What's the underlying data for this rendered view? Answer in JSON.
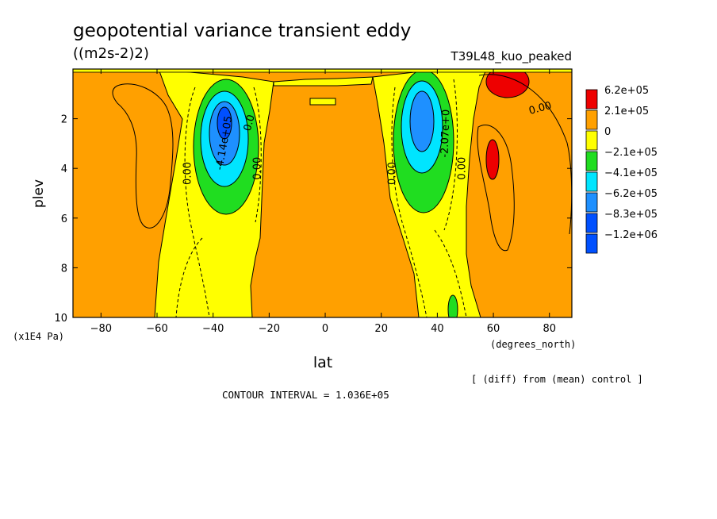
{
  "colors": {
    "red": "#ee0000",
    "orange": "#ffa000",
    "yellow": "#ffff00",
    "green": "#20dd20",
    "cyan": "#00e5ff",
    "lightblue": "#1e90ff",
    "blue": "#0050ff"
  },
  "chart_data": {
    "type": "heatmap",
    "title": "geopotential variance transient eddy",
    "units": "((m2s-2)2)",
    "run": "T39L48_kuo_peaked",
    "xlabel": "lat",
    "xunits": "(degrees_north)",
    "ylabel": "plev",
    "yunits": "(x1E4 Pa)",
    "xlim": [
      -90,
      88
    ],
    "ylim": [
      10,
      0
    ],
    "xticks": [
      -80,
      -60,
      -40,
      -20,
      0,
      20,
      40,
      60,
      80
    ],
    "yticks": [
      2,
      4,
      6,
      8,
      10
    ],
    "note": "[ (diff) from (mean) control ]",
    "contour_interval": "CONTOUR INTERVAL = 1.036E+05",
    "legend": {
      "placement": "right",
      "entries": [
        {
          "label": "6.2e+05",
          "color": "#ee0000"
        },
        {
          "label": "2.1e+05",
          "color": "#ffa000"
        },
        {
          "label": "0",
          "color": "#ffff00"
        },
        {
          "label": "−2.1e+05",
          "color": "#20dd20"
        },
        {
          "label": "−4.1e+05",
          "color": "#00e5ff"
        },
        {
          "label": "−6.2e+05",
          "color": "#1e90ff"
        },
        {
          "label": "−8.3e+05",
          "color": "#0050ff"
        },
        {
          "label": "−1.2e+06",
          "color": "#0050ff"
        }
      ]
    },
    "contour_labels": [
      {
        "text": "0.00",
        "lat": -48,
        "plev": 4.2,
        "rotate": -90
      },
      {
        "text": "0.00",
        "lat": -23,
        "plev": 4.0,
        "rotate": -90
      },
      {
        "text": "-4.14e+05",
        "lat": -35,
        "plev": 3.0,
        "rotate": -80
      },
      {
        "text": "0.0",
        "lat": -26,
        "plev": 2.2,
        "rotate": -75
      },
      {
        "text": "0.00",
        "lat": 25,
        "plev": 4.2,
        "rotate": -90
      },
      {
        "text": "-2.07e+0",
        "lat": 44,
        "plev": 2.6,
        "rotate": -88
      },
      {
        "text": "0.00",
        "lat": 50,
        "plev": 4.0,
        "rotate": -90
      },
      {
        "text": "0.00",
        "lat": 77,
        "plev": 1.7,
        "rotate": -15
      }
    ]
  }
}
